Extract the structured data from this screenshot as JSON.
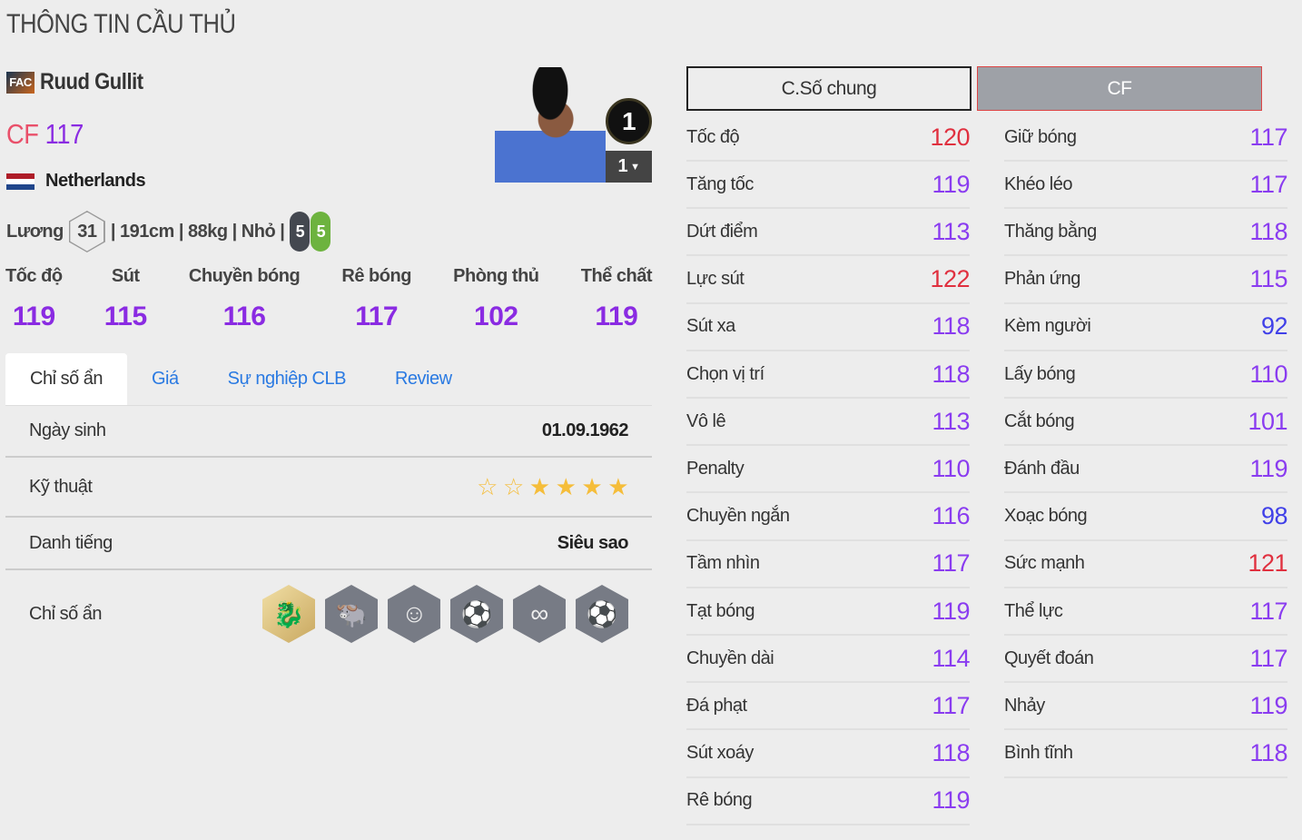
{
  "title": "THÔNG TIN CẦU THỦ",
  "player": {
    "club_badge": "FAC",
    "name": "Ruud Gullit",
    "position": "CF",
    "overall": "117",
    "nation": "Netherlands",
    "salary_label": "Lương",
    "salary": "31",
    "details": "| 191cm | 88kg | Nhỏ |",
    "weak_foot": "5",
    "strong_foot": "5",
    "rank": "1",
    "upgrade": "1"
  },
  "top_stats": [
    {
      "label": "Tốc độ",
      "value": "119"
    },
    {
      "label": "Sút",
      "value": "115"
    },
    {
      "label": "Chuyền bóng",
      "value": "116"
    },
    {
      "label": "Rê bóng",
      "value": "117"
    },
    {
      "label": "Phòng thủ",
      "value": "102"
    },
    {
      "label": "Thể chất",
      "value": "119"
    }
  ],
  "tabs": [
    "Chỉ số ẩn",
    "Giá",
    "Sự nghiệp CLB",
    "Review"
  ],
  "details": {
    "birth_label": "Ngày sinh",
    "birth": "01.09.1962",
    "skill_label": "Kỹ thuật",
    "skill_stars": 4,
    "skill_max": 6,
    "fame_label": "Danh tiếng",
    "fame": "Siêu sao",
    "traits_label": "Chỉ số ẩn",
    "traits": [
      {
        "icon": "dragon-icon",
        "gold": true
      },
      {
        "icon": "bull-icon"
      },
      {
        "icon": "head-icon"
      },
      {
        "icon": "speed-dribble-icon"
      },
      {
        "icon": "dribble-path-icon"
      },
      {
        "icon": "long-shot-icon"
      }
    ]
  },
  "stat_buttons": {
    "general": "C.Số chung",
    "position": "CF"
  },
  "colors": {
    "high": "#e0303f",
    "normal": "#8a3cf0",
    "low": "#4040e8"
  },
  "stats_left": [
    [
      "Tốc độ",
      "120"
    ],
    [
      "Tăng tốc",
      "119"
    ],
    [
      "Dứt điểm",
      "113"
    ],
    [
      "Lực sút",
      "122"
    ],
    [
      "Sút xa",
      "118"
    ],
    [
      "Chọn vị trí",
      "118"
    ],
    [
      "Vô lê",
      "113"
    ],
    [
      "Penalty",
      "110"
    ],
    [
      "Chuyền ngắn",
      "116"
    ],
    [
      "Tầm nhìn",
      "117"
    ],
    [
      "Tạt bóng",
      "119"
    ],
    [
      "Chuyền dài",
      "114"
    ],
    [
      "Đá phạt",
      "117"
    ],
    [
      "Sút xoáy",
      "118"
    ],
    [
      "Rê bóng",
      "119"
    ]
  ],
  "stats_right": [
    [
      "Giữ bóng",
      "117"
    ],
    [
      "Khéo léo",
      "117"
    ],
    [
      "Thăng bằng",
      "118"
    ],
    [
      "Phản ứng",
      "115"
    ],
    [
      "Kèm người",
      "92"
    ],
    [
      "Lấy bóng",
      "110"
    ],
    [
      "Cắt bóng",
      "101"
    ],
    [
      "Đánh đầu",
      "119"
    ],
    [
      "Xoạc bóng",
      "98"
    ],
    [
      "Sức mạnh",
      "121"
    ],
    [
      "Thể lực",
      "117"
    ],
    [
      "Quyết đoán",
      "117"
    ],
    [
      "Nhảy",
      "119"
    ],
    [
      "Bình tĩnh",
      "118"
    ]
  ]
}
